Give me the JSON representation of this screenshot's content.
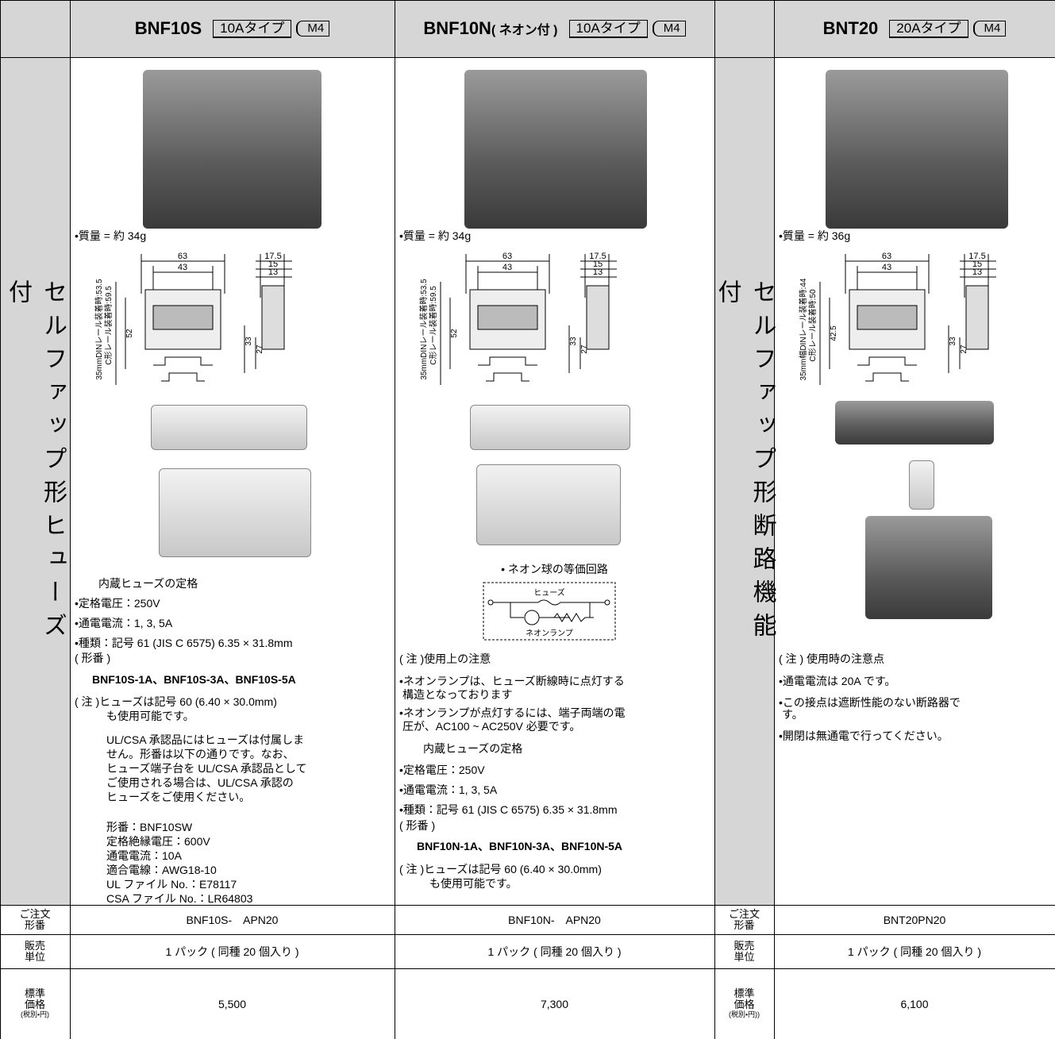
{
  "header": {
    "columns": [
      {
        "model": "BNF10S",
        "type": "10Aタイプ",
        "screw": "M4"
      },
      {
        "model": "BNF10N",
        "suffix": "( ネオン付 )",
        "type": "10Aタイプ",
        "screw": "M4"
      },
      {
        "model": "BNT20",
        "type": "20Aタイプ",
        "screw": "M4"
      }
    ]
  },
  "side_labels": [
    "セルファップ形ヒューズ付",
    "セルファップ形断路機能付"
  ],
  "body": [
    {
      "weight": "•質量 = 約 34g",
      "dimensions": [
        63,
        43,
        17.5,
        15,
        13,
        "35mmDINレール装着時:53.5",
        "C形レール装着時:59.5",
        52,
        33,
        27
      ],
      "text": [
        "内蔵ヒューズの定格",
        "•定格電圧：250V",
        "•通電電流：1, 3, 5A",
        "•種類：記号 61 (JIS C 6575) 6.35 × 31.8mm",
        "( 形番 )",
        "BNF10S-1A、BNF10S-3A、BNF10S-5A",
        "( 注 )ヒューズは記号 60 (6.40 × 30.0mm)",
        "も使用可能です。",
        "UL/CSA 承認品にはヒューズは付属しま",
        "せん。形番は以下の通りです。なお、",
        "ヒューズ端子台を UL/CSA 承認品として",
        "ご使用される場合は、UL/CSA 承認の",
        "ヒューズをご使用ください。",
        "形番：BNF10SW",
        "定格絶縁電圧：600V",
        "通電電流：10A",
        "適合電線：AWG18-10",
        "UL ファイル No.：E78117",
        "CSA ファイル No.：LR64803"
      ]
    },
    {
      "weight": "•質量 = 約 34g",
      "dimensions": [
        63,
        43,
        17.5,
        15,
        13,
        "35mmDINレール装着時:53.5",
        "C形レール装着時:59.5",
        52,
        33,
        27
      ],
      "circuit_title": "• ネオン球の等価回路",
      "circuit": [
        "ヒューズ",
        "ネオンランプ"
      ],
      "text": [
        "( 注 )使用上の注意",
        "•ネオンランプは、ヒューズ断線時に点灯する",
        "構造となっております",
        "•ネオンランプが点灯するには、端子両端の電",
        "圧が、AC100 ~ AC250V 必要です。",
        "内蔵ヒューズの定格",
        "•定格電圧：250V",
        "•通電電流：1, 3, 5A",
        "•種類：記号 61 (JIS C 6575) 6.35 × 31.8mm",
        "( 形番 )",
        "BNF10N-1A、BNF10N-3A、BNF10N-5A",
        "( 注 )ヒューズは記号 60 (6.40 × 30.0mm)",
        "も使用可能です。"
      ]
    },
    {
      "weight": "•質量 = 約 36g",
      "dimensions": [
        63,
        43,
        17.5,
        15,
        13,
        "35mm幅DINレール装着時:44",
        "C形レール装着時:50",
        42.5,
        33,
        27
      ],
      "text": [
        "( 注 ) 使用時の注意点",
        "•通電電流は 20A です。",
        "•この接点は遮断性能のない断路器で",
        "す。",
        "•開閉は無通電で行ってください。"
      ]
    }
  ],
  "footer": {
    "left_labels": [
      [
        "ご注文",
        "形番"
      ],
      [
        "販売",
        "単位"
      ],
      [
        "標準",
        "価格",
        "(税別・円)"
      ]
    ],
    "mid_labels": [
      [
        "ご注文",
        "形番"
      ],
      [
        "販売",
        "単位"
      ],
      [
        "標準",
        "価格",
        "(税別・円))"
      ]
    ],
    "rows": [
      [
        "BNF10S-　APN20",
        "BNF10N-　APN20",
        "BNT20PN20"
      ],
      [
        "1 パック ( 同種 20 個入り )",
        "1 パック ( 同種 20 個入り )",
        "1 パック ( 同種 20 個入り )"
      ],
      [
        "5,500",
        "7,300",
        "6,100"
      ]
    ]
  }
}
